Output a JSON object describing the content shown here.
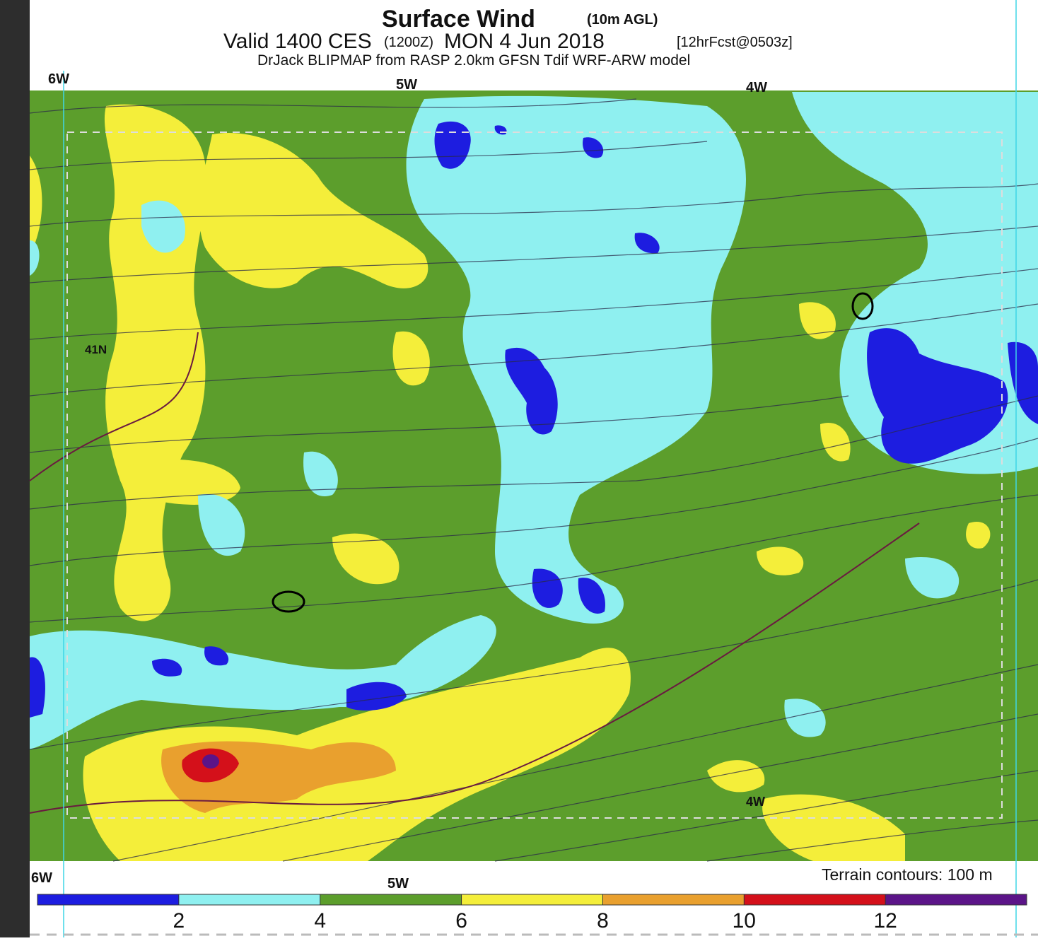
{
  "header": {
    "title": "Surface Wind",
    "title_note": "(10m AGL)",
    "valid": "Valid 1400 CES",
    "zone": "(1200Z)",
    "date": "MON 4 Jun 2018",
    "forecast": "[12hrFcst@0503z]",
    "model": "DrJack BLIPMAP from RASP 2.0km GFSN Tdif WRF-ARW model"
  },
  "map": {
    "top_labels": [
      "6W",
      "5W",
      "4W"
    ],
    "bottom_labels": [
      "6W",
      "5W"
    ],
    "lat_label": "41N",
    "inner_lon_label": "4W",
    "terrain_note": "Terrain contours: 100 m"
  },
  "colorbar": {
    "lim": [
      0,
      14
    ],
    "ticks": [
      2,
      4,
      6,
      8,
      10,
      12
    ],
    "colors": [
      "#1d1de0",
      "#8ff0f0",
      "#5c9e2c",
      "#f4ee3a",
      "#e9a02e",
      "#d4101a",
      "#5b1488"
    ]
  }
}
